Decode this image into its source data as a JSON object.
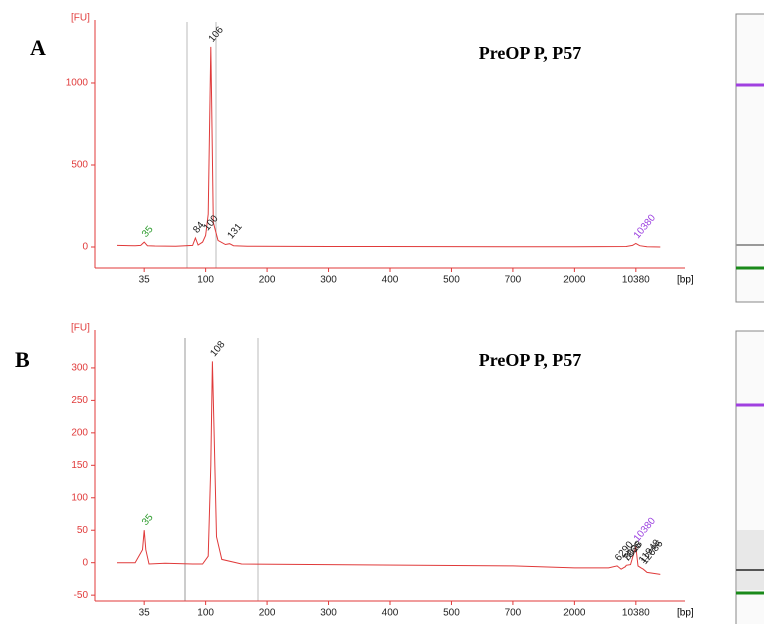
{
  "chart_data": [
    {
      "type": "line",
      "panel_label": "A",
      "title": "PreOP P, P57",
      "y_label": "[FU]",
      "x_label": "[bp]",
      "ylim": [
        -128,
        1323
      ],
      "yticks": [
        0,
        500,
        1000
      ],
      "xticks": [
        35,
        100,
        200,
        300,
        400,
        500,
        700,
        2000,
        10380
      ],
      "trace": {
        "color": "#e03a3a",
        "x": [
          22,
          30,
          33,
          35,
          37,
          42,
          60,
          80,
          84,
          88,
          95,
          100,
          103,
          105,
          106,
          107,
          109,
          115,
          125,
          131,
          137,
          160,
          300,
          700,
          2000,
          8000,
          9500,
          10380,
          11500,
          14000,
          20000
        ],
        "y": [
          10,
          8,
          10,
          30,
          8,
          6,
          5,
          10,
          55,
          12,
          30,
          70,
          200,
          900,
          1220,
          900,
          150,
          40,
          15,
          20,
          8,
          5,
          3,
          2,
          2,
          3,
          10,
          22,
          8,
          2,
          0
        ]
      },
      "peaks": [
        {
          "x": 35,
          "y": 30,
          "color": "#2a9a2a"
        },
        {
          "x": 84,
          "y": 55,
          "color": "#222222"
        },
        {
          "x": 100,
          "y": 70,
          "color": "#222222"
        },
        {
          "x": 106,
          "y": 1220,
          "color": "#222222"
        },
        {
          "x": 131,
          "y": 20,
          "color": "#222222"
        },
        {
          "x": 10380,
          "y": 22,
          "color": "#9b40e0"
        }
      ]
    },
    {
      "type": "line",
      "panel_label": "B",
      "title": "PreOP P, P57",
      "y_label": "[FU]",
      "x_label": "[bp]",
      "ylim": [
        -59,
        343
      ],
      "yticks": [
        -50,
        0,
        50,
        100,
        150,
        200,
        250,
        300
      ],
      "xticks": [
        35,
        100,
        200,
        300,
        400,
        500,
        700,
        2000,
        10380
      ],
      "trace": {
        "color": "#e03a3a",
        "x": [
          22,
          30,
          34,
          35,
          36,
          38,
          50,
          80,
          95,
          103,
          106,
          108,
          110,
          113,
          120,
          150,
          300,
          700,
          2000,
          5000,
          6290,
          7000,
          7866,
          8028,
          9000,
          10380,
          11000,
          11948,
          12686,
          14000,
          20000
        ],
        "y": [
          0,
          0,
          20,
          50,
          20,
          -2,
          -1,
          -2,
          -2,
          10,
          150,
          310,
          200,
          40,
          5,
          -2,
          -3,
          -5,
          -8,
          -8,
          -5,
          -10,
          -6,
          -4,
          -3,
          25,
          -5,
          -8,
          -10,
          -15,
          -18
        ]
      },
      "peaks": [
        {
          "x": 35,
          "y": 50,
          "color": "#2a9a2a"
        },
        {
          "x": 108,
          "y": 310,
          "color": "#222222"
        },
        {
          "x": 6290,
          "y": -5,
          "color": "#222222"
        },
        {
          "x": 7866,
          "y": -6,
          "color": "#222222"
        },
        {
          "x": 8028,
          "y": -4,
          "color": "#222222"
        },
        {
          "x": 10380,
          "y": 25,
          "color": "#9b40e0"
        },
        {
          "x": 11948,
          "y": -8,
          "color": "#222222"
        },
        {
          "x": 12686,
          "y": -10,
          "color": "#222222"
        }
      ]
    }
  ]
}
